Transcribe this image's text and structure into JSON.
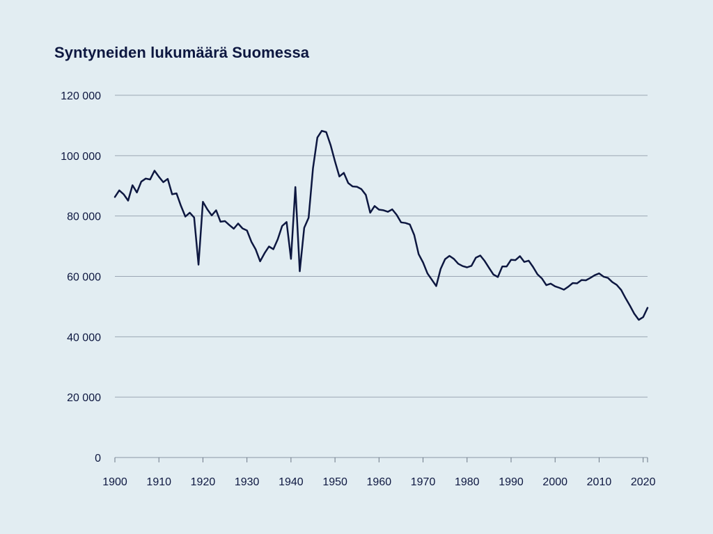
{
  "chart_data": {
    "type": "line",
    "title": "Syntyneiden lukumäärä Suomessa",
    "xlabel": "",
    "ylabel": "",
    "xlim": [
      1900,
      2021
    ],
    "ylim": [
      0,
      120000
    ],
    "y_ticks": [
      0,
      20000,
      40000,
      60000,
      80000,
      100000,
      120000
    ],
    "y_tick_labels": [
      "0",
      "20 000",
      "40 000",
      "60 000",
      "80 000",
      "100 000",
      "120 000"
    ],
    "x_ticks": [
      1900,
      1910,
      1920,
      1930,
      1940,
      1950,
      1960,
      1970,
      1980,
      1990,
      2000,
      2010,
      2020
    ],
    "x_tick_labels": [
      "1900",
      "1910",
      "1920",
      "1930",
      "1940",
      "1950",
      "1960",
      "1970",
      "1980",
      "1990",
      "2000",
      "2010",
      "2020"
    ],
    "grid": "horizontal",
    "colors": {
      "line": "#0d1740",
      "background": "#e2edf2",
      "grid": "#9aa6b3",
      "text": "#0d1740"
    },
    "series": [
      {
        "x": [
          1900,
          1901,
          1902,
          1903,
          1904,
          1905,
          1906,
          1907,
          1908,
          1909,
          1910,
          1911,
          1912,
          1913,
          1914,
          1915,
          1916,
          1917,
          1918,
          1919,
          1920,
          1921,
          1922,
          1923,
          1924,
          1925,
          1926,
          1927,
          1928,
          1929,
          1930,
          1931,
          1932,
          1933,
          1934,
          1935,
          1936,
          1937,
          1938,
          1939,
          1940,
          1941,
          1942,
          1943,
          1944,
          1945,
          1946,
          1947,
          1948,
          1949,
          1950,
          1951,
          1952,
          1953,
          1954,
          1955,
          1956,
          1957,
          1958,
          1959,
          1960,
          1961,
          1962,
          1963,
          1964,
          1965,
          1966,
          1967,
          1968,
          1969,
          1970,
          1971,
          1972,
          1973,
          1974,
          1975,
          1976,
          1977,
          1978,
          1979,
          1980,
          1981,
          1982,
          1983,
          1984,
          1985,
          1986,
          1987,
          1988,
          1989,
          1990,
          1991,
          1992,
          1993,
          1994,
          1995,
          1996,
          1997,
          1998,
          1999,
          2000,
          2001,
          2002,
          2003,
          2004,
          2005,
          2006,
          2007,
          2008,
          2009,
          2010,
          2011,
          2012,
          2013,
          2014,
          2015,
          2016,
          2017,
          2018,
          2019,
          2020,
          2021
        ],
        "values": [
          86300,
          88500,
          87200,
          85100,
          90200,
          87800,
          91400,
          92400,
          92100,
          95000,
          93000,
          91200,
          92300,
          87200,
          87500,
          83400,
          79800,
          81100,
          79500,
          63900,
          84700,
          82200,
          80200,
          81900,
          78100,
          78300,
          77000,
          75800,
          77500,
          75900,
          75200,
          71500,
          68900,
          65000,
          67700,
          69900,
          69000,
          72300,
          76700,
          78000,
          65800,
          89600,
          61700,
          76100,
          79400,
          95800,
          106000,
          108200,
          107800,
          103500,
          98100,
          93100,
          94300,
          90900,
          89800,
          89700,
          88900,
          86985,
          81100,
          83300,
          82100,
          81900,
          81400,
          82200,
          80400,
          77900,
          77700,
          77200,
          73700,
          67400,
          64600,
          61000,
          58900,
          56800,
          62500,
          65700,
          66800,
          65800,
          64200,
          63400,
          63000,
          63500,
          66200,
          66900,
          65100,
          62800,
          60600,
          59800,
          63300,
          63300,
          65500,
          65400,
          66700,
          64800,
          65200,
          63100,
          60700,
          59300,
          57100,
          57600,
          56700,
          56200,
          55600,
          56600,
          57800,
          57700,
          58800,
          58700,
          59500,
          60400,
          61000,
          59900,
          59500,
          58100,
          57200,
          55500,
          52800,
          50300,
          47600,
          45600,
          46500,
          49600
        ]
      }
    ]
  }
}
